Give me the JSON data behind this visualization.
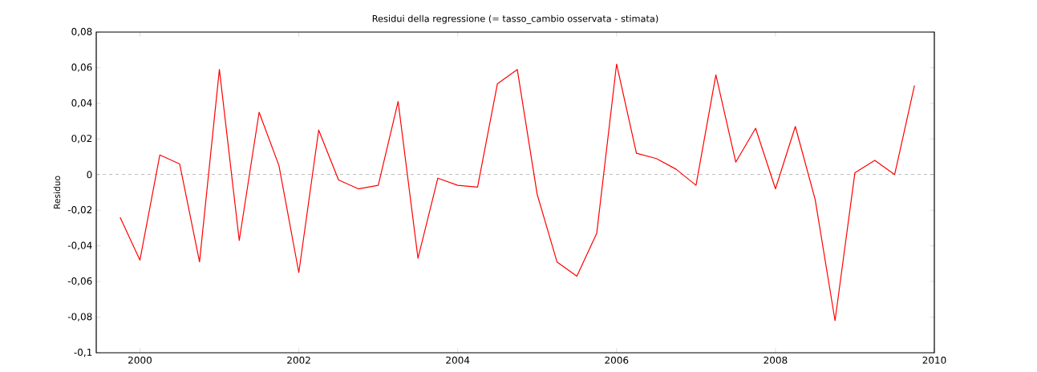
{
  "chart_data": {
    "type": "line",
    "title": "Residui della regressione (= tasso_cambio osservata - stimata)",
    "ylabel": "Residuo",
    "x": [
      1999.75,
      2000,
      2000.25,
      2000.5,
      2000.75,
      2001,
      2001.25,
      2001.5,
      2001.75,
      2002,
      2002.25,
      2002.5,
      2002.75,
      2003,
      2003.25,
      2003.5,
      2003.75,
      2004,
      2004.25,
      2004.5,
      2004.75,
      2005,
      2005.25,
      2005.5,
      2005.75,
      2006,
      2006.25,
      2006.5,
      2006.75,
      2007,
      2007.25,
      2007.5,
      2007.75,
      2008,
      2008.25,
      2008.5,
      2008.75,
      2009,
      2009.25,
      2009.5,
      2009.75
    ],
    "series": [
      {
        "color": "#ff0000",
        "values": [
          -0.024,
          -0.048,
          0.011,
          0.006,
          -0.049,
          0.059,
          -0.037,
          0.035,
          0.005,
          -0.055,
          0.025,
          -0.003,
          -0.008,
          -0.006,
          0.041,
          -0.047,
          -0.002,
          -0.006,
          -0.007,
          0.051,
          0.059,
          -0.011,
          -0.049,
          -0.057,
          -0.033,
          0.062,
          0.012,
          0.009,
          0.003,
          -0.006,
          0.056,
          0.007,
          0.026,
          -0.008,
          0.027,
          -0.014,
          -0.082,
          0.001,
          0.008,
          0.0,
          0.05
        ]
      }
    ],
    "xlim": [
      1999.45,
      2010
    ],
    "ylim": [
      -0.1,
      0.08
    ],
    "xticks": [
      2000,
      2002,
      2004,
      2006,
      2008,
      2010
    ],
    "yticks": [
      {
        "value": -0.1,
        "label": "-0,1"
      },
      {
        "value": -0.08,
        "label": "-0,08"
      },
      {
        "value": -0.06,
        "label": "-0,06"
      },
      {
        "value": -0.04,
        "label": "-0,04"
      },
      {
        "value": -0.02,
        "label": "-0,02"
      },
      {
        "value": 0,
        "label": "0"
      },
      {
        "value": 0.02,
        "label": "0,02"
      },
      {
        "value": 0.04,
        "label": "0,04"
      },
      {
        "value": 0.06,
        "label": "0,06"
      },
      {
        "value": 0.08,
        "label": "0,08"
      }
    ],
    "ref_lines": [
      {
        "axis": "y",
        "value": 0,
        "color": "#808080",
        "line_style": "dashed"
      }
    ],
    "marker": "none",
    "line_style": "solid"
  }
}
